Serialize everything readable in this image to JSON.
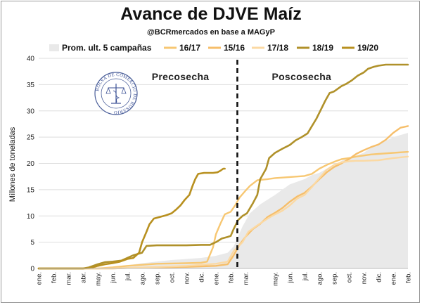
{
  "header": {
    "title": "Avance de DJVE Maíz",
    "subtitle": "@BCRmercados en base a MAGyP"
  },
  "logo": {
    "name": "bolsa-de-comercio-de-rosario-seal",
    "text": "BOLSA DE COMERCIO DE ROSARIO"
  },
  "chart_data": {
    "type": "line",
    "title": "Avance de DJVE Maíz",
    "subtitle": "@BCRmercados en base a MAGyP",
    "ylabel": "Millones de toneladas",
    "xlabel": "",
    "ylim": [
      0,
      40
    ],
    "yticks": [
      0,
      5,
      10,
      15,
      20,
      25,
      30,
      35,
      40
    ],
    "x_month_labels": [
      "ene.",
      "feb.",
      "mar.",
      "abr.",
      "may.",
      "jun.",
      "jul.",
      "ago.",
      "sep.",
      "oct.",
      "nov.",
      "dic.",
      "ene.",
      "feb.",
      "mar.",
      "may.",
      "jun.",
      "jul.",
      "ago.",
      "sep.",
      "oct.",
      "nov.",
      "dic.",
      "ene.",
      "feb."
    ],
    "x_month_index": [
      0,
      1,
      2,
      3,
      4,
      5,
      6,
      7,
      8,
      9,
      10,
      11,
      12,
      13,
      14,
      16,
      17,
      18,
      19,
      20,
      21,
      22,
      23,
      24,
      25
    ],
    "xlim": [
      0,
      25
    ],
    "grid": "horizontal",
    "legend_position": "top",
    "divider": {
      "month": 13.45,
      "style": "dashed"
    },
    "annotations": [
      {
        "text": "Precosecha",
        "month": 9.6,
        "y": 36.5
      },
      {
        "text": "Poscosecha",
        "month": 17.8,
        "y": 36.5
      }
    ],
    "area": {
      "name": "Prom. ult. 5 campañas",
      "color": "#e9e9e9",
      "points": [
        [
          0,
          0
        ],
        [
          4,
          0
        ],
        [
          5,
          0.2
        ],
        [
          6,
          0.6
        ],
        [
          7,
          1.0
        ],
        [
          8,
          1.3
        ],
        [
          9,
          1.6
        ],
        [
          10,
          1.8
        ],
        [
          11,
          2.0
        ],
        [
          12,
          2.4
        ],
        [
          12.8,
          3.0
        ],
        [
          13.2,
          4.2
        ],
        [
          13.8,
          8.0
        ],
        [
          14.3,
          10.5
        ],
        [
          15,
          12.2
        ],
        [
          16,
          14.0
        ],
        [
          17,
          16.0
        ],
        [
          18,
          17.0
        ],
        [
          18.5,
          17.8
        ],
        [
          19,
          18.2
        ],
        [
          19.5,
          19.0
        ],
        [
          20,
          19.5
        ],
        [
          20.5,
          20.5
        ],
        [
          21,
          21.0
        ],
        [
          22,
          22.0
        ],
        [
          22.5,
          23.0
        ],
        [
          23,
          23.5
        ],
        [
          23.5,
          24.3
        ],
        [
          24,
          25.0
        ],
        [
          25,
          25.8
        ]
      ]
    },
    "series": [
      {
        "name": "16/17",
        "color": "#f7c772",
        "width": 2.4,
        "points": [
          [
            0,
            0
          ],
          [
            4,
            0
          ],
          [
            5,
            0.2
          ],
          [
            6,
            0.5
          ],
          [
            7,
            0.7
          ],
          [
            8,
            0.9
          ],
          [
            10,
            1.0
          ],
          [
            11,
            1.1
          ],
          [
            11.4,
            1.3
          ],
          [
            11.8,
            4.0
          ],
          [
            12.0,
            6.5
          ],
          [
            12.3,
            8.5
          ],
          [
            12.6,
            10.3
          ],
          [
            13.0,
            10.8
          ],
          [
            13.3,
            12.0
          ],
          [
            13.6,
            13.5
          ],
          [
            14.0,
            14.8
          ],
          [
            14.3,
            15.7
          ],
          [
            14.8,
            16.8
          ],
          [
            15.5,
            17.0
          ],
          [
            16,
            17.2
          ],
          [
            17,
            17.4
          ],
          [
            17.5,
            17.5
          ],
          [
            18,
            17.6
          ],
          [
            18.5,
            18.0
          ],
          [
            19,
            19.0
          ],
          [
            19.5,
            19.7
          ],
          [
            20,
            20.3
          ],
          [
            20.5,
            20.8
          ],
          [
            21,
            21.0
          ],
          [
            21.5,
            21.3
          ],
          [
            22,
            21.5
          ],
          [
            22.5,
            21.7
          ],
          [
            23,
            21.8
          ],
          [
            24,
            22.0
          ],
          [
            25,
            22.2
          ]
        ]
      },
      {
        "name": "15/16",
        "color": "#f6be6a",
        "width": 2.4,
        "points": [
          [
            0,
            0
          ],
          [
            5,
            0
          ],
          [
            6,
            0.1
          ],
          [
            8,
            0.2
          ],
          [
            10,
            0.3
          ],
          [
            11,
            0.4
          ],
          [
            12,
            0.5
          ],
          [
            12.8,
            0.8
          ],
          [
            13.2,
            2.5
          ],
          [
            13.6,
            4.5
          ],
          [
            14.0,
            6.0
          ],
          [
            14.5,
            7.5
          ],
          [
            15,
            8.5
          ],
          [
            15.5,
            9.8
          ],
          [
            16,
            10.6
          ],
          [
            16.5,
            11.5
          ],
          [
            17,
            12.7
          ],
          [
            17.5,
            13.7
          ],
          [
            18,
            14.4
          ],
          [
            18.5,
            15.6
          ],
          [
            19,
            17.0
          ],
          [
            19.5,
            18.3
          ],
          [
            20,
            19.3
          ],
          [
            20.5,
            20.0
          ],
          [
            21,
            20.8
          ],
          [
            21.5,
            21.8
          ],
          [
            22,
            22.5
          ],
          [
            22.5,
            23.1
          ],
          [
            23,
            23.6
          ],
          [
            23.5,
            24.5
          ],
          [
            24,
            25.8
          ],
          [
            24.5,
            26.8
          ],
          [
            25,
            27.1
          ]
        ]
      },
      {
        "name": "17/18",
        "color": "#fbd9a3",
        "width": 2.4,
        "points": [
          [
            0,
            0
          ],
          [
            5,
            0
          ],
          [
            6,
            0.1
          ],
          [
            8,
            0.3
          ],
          [
            10,
            0.5
          ],
          [
            11,
            0.7
          ],
          [
            12,
            0.9
          ],
          [
            12.8,
            1.3
          ],
          [
            13.2,
            3.3
          ],
          [
            13.8,
            5.0
          ],
          [
            14.2,
            7.0
          ],
          [
            14.8,
            8.2
          ],
          [
            15.5,
            9.5
          ],
          [
            16,
            10.3
          ],
          [
            16.5,
            11.0
          ],
          [
            17,
            12.0
          ],
          [
            17.5,
            13.3
          ],
          [
            18,
            14.0
          ],
          [
            18.5,
            15.5
          ],
          [
            19,
            17.2
          ],
          [
            19.5,
            18.8
          ],
          [
            20,
            19.7
          ],
          [
            20.5,
            20.2
          ],
          [
            21,
            20.4
          ],
          [
            21.5,
            20.5
          ],
          [
            22,
            20.5
          ],
          [
            23,
            20.6
          ],
          [
            24,
            21.0
          ],
          [
            25,
            21.3
          ]
        ]
      },
      {
        "name": "18/19",
        "color": "#b0912a",
        "width": 2.6,
        "points": [
          [
            0,
            0
          ],
          [
            3,
            0
          ],
          [
            3.4,
            0.2
          ],
          [
            4,
            0.8
          ],
          [
            4.5,
            1.2
          ],
          [
            5,
            1.3
          ],
          [
            5.6,
            1.5
          ],
          [
            6,
            2.0
          ],
          [
            6.4,
            2.5
          ],
          [
            7,
            3.0
          ],
          [
            7.3,
            4.3
          ],
          [
            8,
            4.4
          ],
          [
            10,
            4.4
          ],
          [
            11,
            4.5
          ],
          [
            11.6,
            4.5
          ],
          [
            12,
            5.0
          ],
          [
            12.4,
            5.7
          ],
          [
            12.8,
            6.0
          ],
          [
            13.0,
            6.2
          ],
          [
            13.2,
            7.5
          ],
          [
            13.5,
            9.2
          ],
          [
            13.8,
            10.0
          ],
          [
            14.1,
            10.5
          ],
          [
            14.5,
            12.4
          ],
          [
            14.8,
            14.0
          ],
          [
            15.0,
            17.0
          ],
          [
            15.4,
            19.0
          ],
          [
            15.6,
            21.0
          ],
          [
            16,
            22.0
          ],
          [
            16.5,
            22.8
          ],
          [
            17,
            23.5
          ],
          [
            17.4,
            24.4
          ],
          [
            17.8,
            25.0
          ],
          [
            18.2,
            25.7
          ],
          [
            18.5,
            27.1
          ],
          [
            18.8,
            28.5
          ],
          [
            19.1,
            30.2
          ],
          [
            19.4,
            31.9
          ],
          [
            19.7,
            33.4
          ],
          [
            20,
            33.7
          ],
          [
            20.5,
            34.7
          ],
          [
            20.8,
            35.1
          ],
          [
            21.2,
            35.8
          ],
          [
            21.6,
            36.7
          ],
          [
            22,
            37.3
          ],
          [
            22.3,
            38.0
          ],
          [
            22.7,
            38.4
          ],
          [
            23,
            38.6
          ],
          [
            23.5,
            38.8
          ],
          [
            24,
            38.8
          ],
          [
            25,
            38.8
          ]
        ]
      },
      {
        "name": "19/20",
        "color": "#b8901f",
        "width": 2.6,
        "points": [
          [
            0,
            0
          ],
          [
            3,
            0
          ],
          [
            3.5,
            0.1
          ],
          [
            4,
            0.5
          ],
          [
            4.5,
            0.8
          ],
          [
            5,
            1.0
          ],
          [
            5.5,
            1.3
          ],
          [
            6,
            1.8
          ],
          [
            6.4,
            2.0
          ],
          [
            6.8,
            3.0
          ],
          [
            7,
            5.0
          ],
          [
            7.3,
            7.0
          ],
          [
            7.5,
            8.4
          ],
          [
            7.8,
            9.5
          ],
          [
            8.2,
            9.8
          ],
          [
            8.6,
            10.1
          ],
          [
            9,
            10.5
          ],
          [
            9.3,
            11.2
          ],
          [
            9.6,
            12.0
          ],
          [
            9.9,
            13.1
          ],
          [
            10.2,
            14.0
          ],
          [
            10.4,
            15.6
          ],
          [
            10.6,
            17.0
          ],
          [
            10.8,
            18.0
          ],
          [
            11.2,
            18.2
          ],
          [
            11.8,
            18.2
          ],
          [
            12.1,
            18.3
          ],
          [
            12.3,
            18.6
          ],
          [
            12.5,
            19.0
          ],
          [
            12.6,
            19.0
          ]
        ]
      }
    ]
  }
}
